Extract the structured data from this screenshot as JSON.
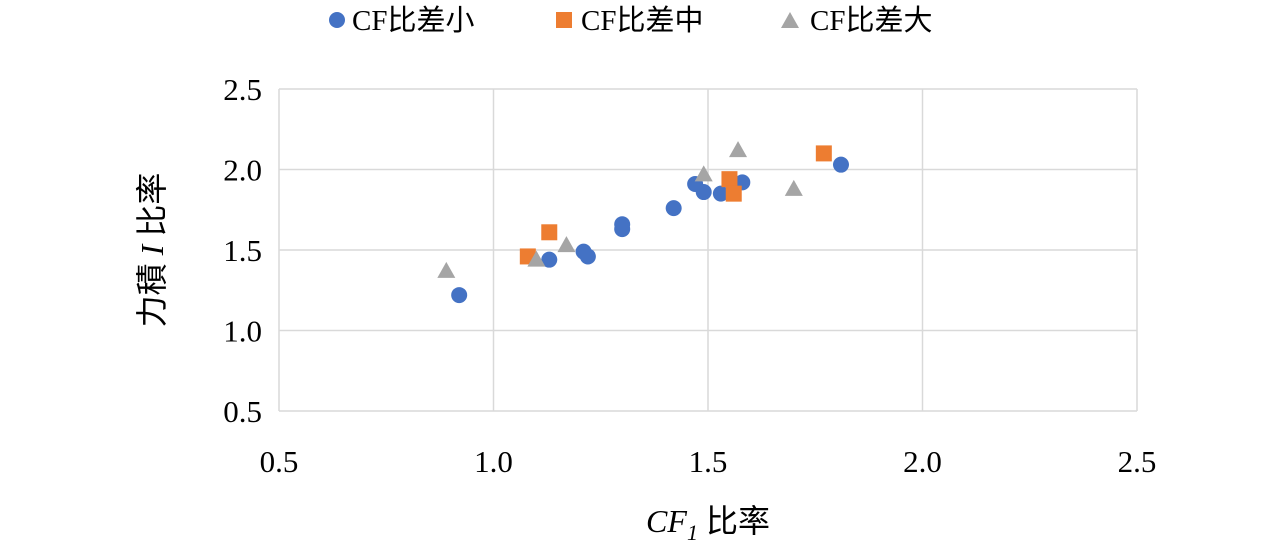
{
  "chart_data": {
    "type": "scatter",
    "xlabel": {
      "italic": "CF",
      "sub": "1",
      "rest": " 比率"
    },
    "ylabel": {
      "pre": "力積 ",
      "italic": "I",
      "post": " 比率"
    },
    "xlim": [
      0.5,
      2.5
    ],
    "ylim": [
      0.5,
      2.5
    ],
    "x_ticks": [
      "0.5",
      "1.0",
      "1.5",
      "2.0",
      "2.5"
    ],
    "y_ticks": [
      "0.5",
      "1.0",
      "1.5",
      "2.0",
      "2.5"
    ],
    "grid": true,
    "legend_position": "top",
    "series": [
      {
        "name": "CF比差小",
        "marker": "circle",
        "color": "#4472C4",
        "points": [
          [
            0.92,
            1.22
          ],
          [
            1.13,
            1.44
          ],
          [
            1.21,
            1.49
          ],
          [
            1.22,
            1.46
          ],
          [
            1.3,
            1.63
          ],
          [
            1.3,
            1.66
          ],
          [
            1.42,
            1.76
          ],
          [
            1.47,
            1.91
          ],
          [
            1.49,
            1.86
          ],
          [
            1.53,
            1.85
          ],
          [
            1.58,
            1.92
          ],
          [
            1.81,
            2.03
          ]
        ]
      },
      {
        "name": "CF比差中",
        "marker": "square",
        "color": "#ED7D31",
        "points": [
          [
            1.08,
            1.46
          ],
          [
            1.13,
            1.61
          ],
          [
            1.55,
            1.94
          ],
          [
            1.56,
            1.85
          ],
          [
            1.77,
            2.1
          ]
        ]
      },
      {
        "name": "CF比差大",
        "marker": "triangle",
        "color": "#A5A5A5",
        "points": [
          [
            0.89,
            1.37
          ],
          [
            1.1,
            1.44
          ],
          [
            1.17,
            1.53
          ],
          [
            1.49,
            1.97
          ],
          [
            1.57,
            2.12
          ],
          [
            1.7,
            1.88
          ]
        ]
      }
    ]
  }
}
